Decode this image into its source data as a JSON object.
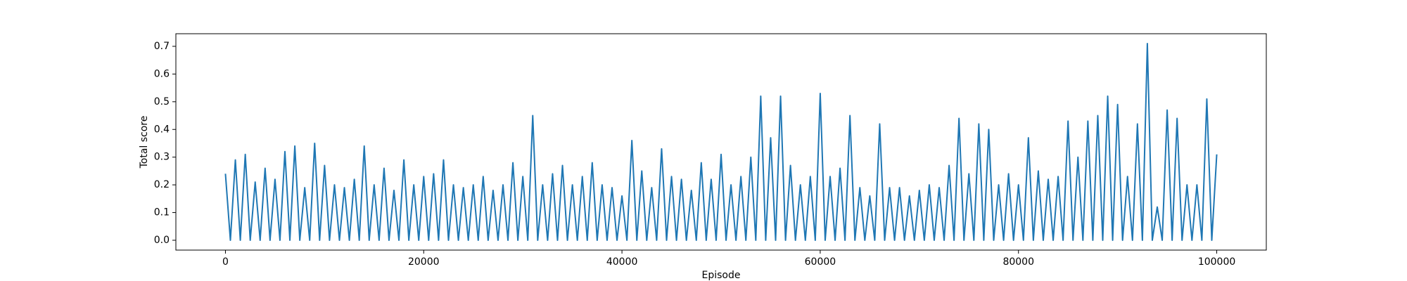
{
  "chart_data": {
    "type": "line",
    "xlabel": "Episode",
    "ylabel": "Total score",
    "xlim": [
      -5000,
      105000
    ],
    "xticks": [
      0,
      20000,
      40000,
      60000,
      80000,
      100000
    ],
    "ylim": [
      -0.0355,
      0.7455
    ],
    "yticks": [
      {
        "value": 0,
        "label": "0.0"
      },
      0.1,
      0.2,
      0.3,
      0.4,
      0.5,
      0.6,
      0.7
    ],
    "x": [
      0,
      500,
      1000,
      1500,
      2000,
      2500,
      3000,
      3500,
      4000,
      4500,
      5000,
      5500,
      6000,
      6500,
      7000,
      7500,
      8000,
      8500,
      9000,
      9500,
      10000,
      10500,
      11000,
      11500,
      12000,
      12500,
      13000,
      13500,
      14000,
      14500,
      15000,
      15500,
      16000,
      16500,
      17000,
      17500,
      18000,
      18500,
      19000,
      19500,
      20000,
      20500,
      21000,
      21500,
      22000,
      22500,
      23000,
      23500,
      24000,
      24500,
      25000,
      25500,
      26000,
      26500,
      27000,
      27500,
      28000,
      28500,
      29000,
      29500,
      30000,
      30500,
      31000,
      31500,
      32000,
      32500,
      33000,
      33500,
      34000,
      34500,
      35000,
      35500,
      36000,
      36500,
      37000,
      37500,
      38000,
      38500,
      39000,
      39500,
      40000,
      40500,
      41000,
      41500,
      42000,
      42500,
      43000,
      43500,
      44000,
      44500,
      45000,
      45500,
      46000,
      46500,
      47000,
      47500,
      48000,
      48500,
      49000,
      49500,
      50000,
      50500,
      51000,
      51500,
      52000,
      52500,
      53000,
      53500,
      54000,
      54500,
      55000,
      55500,
      56000,
      56500,
      57000,
      57500,
      58000,
      58500,
      59000,
      59500,
      60000,
      60500,
      61000,
      61500,
      62000,
      62500,
      63000,
      63500,
      64000,
      64500,
      65000,
      65500,
      66000,
      66500,
      67000,
      67500,
      68000,
      68500,
      69000,
      69500,
      70000,
      70500,
      71000,
      71500,
      72000,
      72500,
      73000,
      73500,
      74000,
      74500,
      75000,
      75500,
      76000,
      76500,
      77000,
      77500,
      78000,
      78500,
      79000,
      79500,
      80000,
      80500,
      81000,
      81500,
      82000,
      82500,
      83000,
      83500,
      84000,
      84500,
      85000,
      85500,
      86000,
      86500,
      87000,
      87500,
      88000,
      88500,
      89000,
      89500,
      90000,
      90500,
      91000,
      91500,
      92000,
      92500,
      93000,
      93500,
      94000,
      94500,
      95000,
      95500,
      96000,
      96500,
      97000,
      97500,
      98000,
      98500,
      99000,
      99500,
      100000
    ],
    "series": [
      {
        "name": "Total score",
        "color": "#1f77b4",
        "values": [
          0.24,
          0,
          0.29,
          0,
          0.31,
          0,
          0.21,
          0,
          0.26,
          0,
          0.22,
          0,
          0.32,
          0,
          0.34,
          0,
          0.19,
          0,
          0.35,
          0,
          0.27,
          0,
          0.2,
          0,
          0.19,
          0,
          0.22,
          0,
          0.34,
          0,
          0.2,
          0,
          0.26,
          0,
          0.18,
          0,
          0.29,
          0,
          0.2,
          0,
          0.23,
          0,
          0.24,
          0,
          0.29,
          0,
          0.2,
          0,
          0.19,
          0,
          0.2,
          0,
          0.23,
          0,
          0.18,
          0,
          0.2,
          0,
          0.28,
          0,
          0.23,
          0,
          0.45,
          0,
          0.2,
          0,
          0.24,
          0,
          0.27,
          0,
          0.2,
          0,
          0.23,
          0,
          0.28,
          0,
          0.2,
          0,
          0.19,
          0,
          0.16,
          0,
          0.36,
          0,
          0.25,
          0,
          0.19,
          0,
          0.33,
          0,
          0.23,
          0,
          0.22,
          0,
          0.18,
          0,
          0.28,
          0,
          0.22,
          0,
          0.31,
          0,
          0.2,
          0,
          0.23,
          0,
          0.3,
          0,
          0.52,
          0,
          0.37,
          0,
          0.52,
          0,
          0.27,
          0,
          0.2,
          0,
          0.23,
          0,
          0.53,
          0,
          0.23,
          0,
          0.26,
          0,
          0.45,
          0,
          0.19,
          0,
          0.16,
          0,
          0.42,
          0,
          0.19,
          0,
          0.19,
          0,
          0.16,
          0,
          0.18,
          0,
          0.2,
          0,
          0.19,
          0,
          0.27,
          0,
          0.44,
          0,
          0.24,
          0,
          0.42,
          0,
          0.4,
          0,
          0.2,
          0,
          0.24,
          0,
          0.2,
          0,
          0.37,
          0,
          0.25,
          0,
          0.22,
          0,
          0.23,
          0,
          0.43,
          0,
          0.3,
          0,
          0.43,
          0,
          0.45,
          0,
          0.52,
          0,
          0.49,
          0,
          0.23,
          0,
          0.42,
          0,
          0.71,
          0,
          0.12,
          0,
          0.47,
          0,
          0.44,
          0,
          0.2,
          0,
          0.2,
          0,
          0.51,
          0,
          0.31
        ]
      }
    ]
  }
}
